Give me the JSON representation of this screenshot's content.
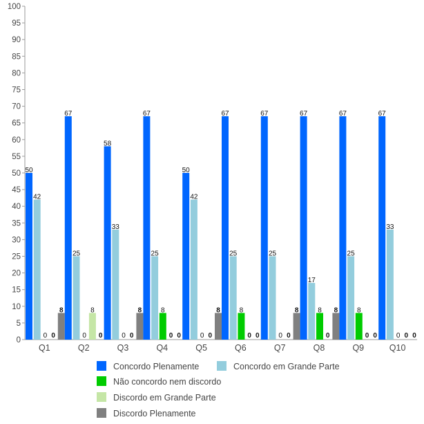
{
  "chart_data": {
    "type": "bar",
    "categories": [
      "Q1",
      "Q2",
      "Q3",
      "Q4",
      "Q5",
      "Q6",
      "Q7",
      "Q8",
      "Q9",
      "Q10"
    ],
    "series": [
      {
        "name": "Concordo Plenamente",
        "color": "#0066ff",
        "values": [
          50,
          67,
          58,
          67,
          50,
          67,
          67,
          67,
          67,
          67
        ]
      },
      {
        "name": "Concordo em Grande Parte",
        "color": "#93cddd",
        "values": [
          42,
          25,
          33,
          25,
          42,
          25,
          25,
          17,
          25,
          33
        ]
      },
      {
        "name": "Não concordo nem discordo",
        "color": "#00cc00",
        "values": [
          0,
          0,
          0,
          8,
          0,
          8,
          0,
          8,
          8,
          0
        ]
      },
      {
        "name": "Discordo em Grande Parte",
        "color": "#c5e6a6",
        "values": [
          0,
          8,
          0,
          0,
          0,
          0,
          0,
          0,
          0,
          0
        ]
      },
      {
        "name": "Discordo Plenamente",
        "color": "#808080",
        "values": [
          8,
          0,
          8,
          0,
          8,
          0,
          8,
          8,
          0,
          0
        ]
      }
    ],
    "yticks": [
      "0",
      "5",
      "10",
      "15",
      "20",
      "25",
      "30",
      "35",
      "40",
      "45",
      "50",
      "55",
      "60",
      "65",
      "70",
      "75",
      "80",
      "85",
      "90",
      "95",
      "100"
    ],
    "ylim": [
      0,
      100
    ],
    "grid": false,
    "legend": "bottom",
    "title": "",
    "xlabel": "",
    "ylabel": ""
  }
}
